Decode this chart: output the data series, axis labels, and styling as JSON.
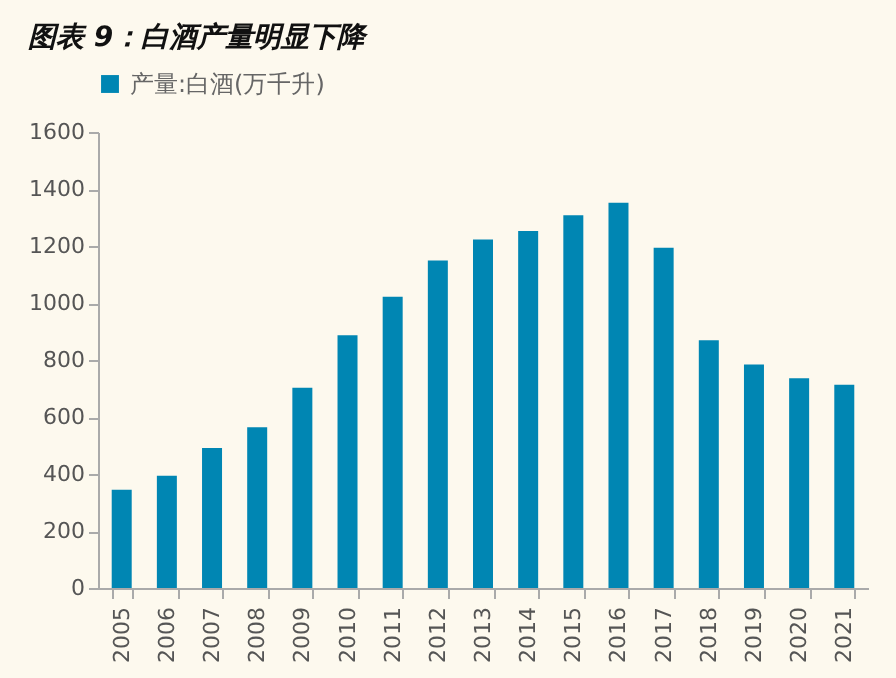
{
  "chart_data": {
    "type": "bar",
    "title": "图表 9：白酒产量明显下降",
    "categories": [
      "2005",
      "2006",
      "2007",
      "2008",
      "2009",
      "2010",
      "2011",
      "2012",
      "2013",
      "2014",
      "2015",
      "2016",
      "2017",
      "2018",
      "2019",
      "2020",
      "2021"
    ],
    "series": [
      {
        "name": "产量:白酒(万千升)",
        "color": "#0086b3",
        "values": [
          345,
          394,
          491,
          564,
          703,
          887,
          1022,
          1149,
          1223,
          1253,
          1308,
          1352,
          1194,
          869,
          784,
          736,
          713
        ]
      }
    ],
    "ylim": [
      0,
      1600
    ],
    "yticks": [
      0,
      200,
      400,
      600,
      800,
      1000,
      1200,
      1400,
      1600
    ],
    "grid": false,
    "legend": "top"
  }
}
